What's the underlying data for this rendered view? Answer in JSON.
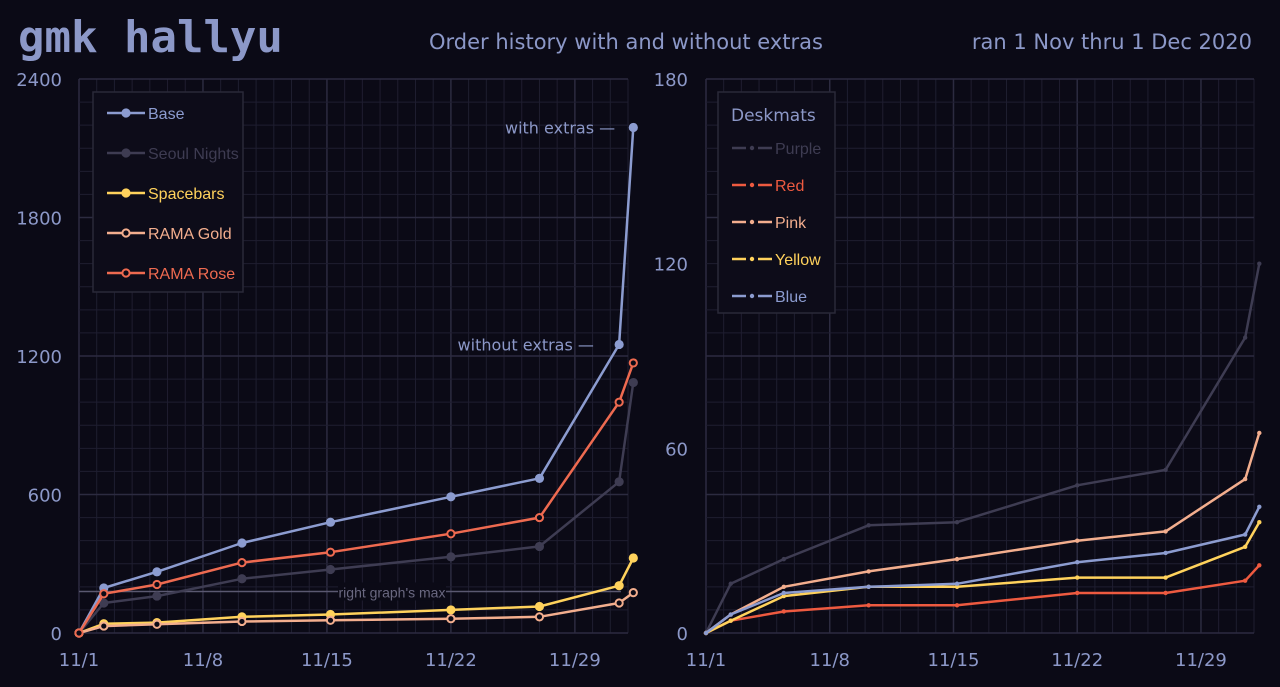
{
  "header": {
    "brand": "gmk hallyu",
    "subtitle": "Order history with and without extras",
    "date_range": "ran 1 Nov thru 1 Dec 2020"
  },
  "colors": {
    "background": "#0b0a16",
    "text": "#8c98c8",
    "grid": "#1f1e30",
    "grid_major": "#2c2b40",
    "base": "#8c9cd0",
    "seoul_nights": "#3e3c52",
    "spacebars": "#ffd25c",
    "rama_gold": "#f3ae8e",
    "rama_rose": "#ee6a50",
    "purple": "#3e3c52",
    "red": "#ee5a40",
    "pink": "#f3ae8e",
    "yellow": "#ffd25c",
    "blue": "#8c9cd0"
  },
  "chart_data": [
    {
      "type": "line",
      "panel": "left",
      "title": "Order history with and without extras",
      "x_unit": "day of November 2020 (32 = 2 Dec)",
      "xticks": [
        1,
        8,
        15,
        22,
        29
      ],
      "xtick_labels": [
        "11/1",
        "11/8",
        "11/15",
        "11/22",
        "11/29"
      ],
      "xlim": [
        1,
        32
      ],
      "ylim": [
        0,
        2400
      ],
      "yticks": [
        0,
        600,
        1200,
        1800,
        2400
      ],
      "ytick_labels": [
        "0",
        "600",
        "1200",
        "1800",
        "2400"
      ],
      "legend_position": "top-left",
      "series": [
        {
          "name": "Base",
          "color": "base",
          "marker": "filled",
          "points": [
            [
              1,
              0
            ],
            [
              2.4,
              195
            ],
            [
              5.4,
              265
            ],
            [
              10.2,
              390
            ],
            [
              15.2,
              480
            ],
            [
              22,
              590
            ],
            [
              27,
              670
            ],
            [
              31.5,
              1250
            ],
            [
              32.3,
              2190
            ]
          ]
        },
        {
          "name": "Seoul Nights",
          "color": "seoul_nights",
          "marker": "filled",
          "points": [
            [
              1,
              0
            ],
            [
              2.4,
              130
            ],
            [
              5.4,
              160
            ],
            [
              10.2,
              235
            ],
            [
              15.2,
              275
            ],
            [
              22,
              330
            ],
            [
              27,
              375
            ],
            [
              31.5,
              655
            ],
            [
              32.3,
              1085
            ]
          ]
        },
        {
          "name": "Spacebars",
          "color": "spacebars",
          "marker": "filled",
          "points": [
            [
              1,
              0
            ],
            [
              2.4,
              40
            ],
            [
              5.4,
              45
            ],
            [
              10.2,
              70
            ],
            [
              15.2,
              80
            ],
            [
              22,
              100
            ],
            [
              27,
              115
            ],
            [
              31.5,
              205
            ],
            [
              32.3,
              325
            ]
          ]
        },
        {
          "name": "RAMA Gold",
          "color": "rama_gold",
          "marker": "hollow",
          "points": [
            [
              1,
              0
            ],
            [
              2.4,
              30
            ],
            [
              5.4,
              38
            ],
            [
              10.2,
              50
            ],
            [
              15.2,
              55
            ],
            [
              22,
              62
            ],
            [
              27,
              70
            ],
            [
              31.5,
              130
            ],
            [
              32.3,
              175
            ]
          ]
        },
        {
          "name": "RAMA Rose",
          "color": "rama_rose",
          "marker": "hollow",
          "points": [
            [
              1,
              0
            ],
            [
              2.4,
              170
            ],
            [
              5.4,
              210
            ],
            [
              10.2,
              305
            ],
            [
              15.2,
              350
            ],
            [
              22,
              430
            ],
            [
              27,
              500
            ],
            [
              31.5,
              1000
            ],
            [
              32.3,
              1170
            ]
          ]
        }
      ],
      "annotations": [
        {
          "text": "with extras —",
          "x": 31.5,
          "y": 2190
        },
        {
          "text": "without extras —",
          "x": 30.3,
          "y": 1250
        },
        {
          "text": "right graph's max",
          "y": 180
        }
      ]
    },
    {
      "type": "line",
      "panel": "right",
      "legend_title": "Deskmats",
      "x_unit": "day of November 2020 (32 = 2 Dec)",
      "xticks": [
        1,
        8,
        15,
        22,
        29
      ],
      "xtick_labels": [
        "11/1",
        "11/8",
        "11/15",
        "11/22",
        "11/29"
      ],
      "xlim": [
        1,
        32
      ],
      "ylim": [
        0,
        180
      ],
      "yticks": [
        0,
        60,
        120,
        180
      ],
      "ytick_labels": [
        "0",
        "60",
        "120",
        "180"
      ],
      "legend_position": "top-left",
      "series": [
        {
          "name": "Purple",
          "color": "purple",
          "points": [
            [
              1,
              0
            ],
            [
              2.4,
              16
            ],
            [
              5.4,
              24
            ],
            [
              10.2,
              35
            ],
            [
              15.2,
              36
            ],
            [
              22,
              48
            ],
            [
              27,
              53
            ],
            [
              31.5,
              96
            ],
            [
              32.3,
              120
            ]
          ]
        },
        {
          "name": "Red",
          "color": "red",
          "points": [
            [
              1,
              0
            ],
            [
              2.4,
              4
            ],
            [
              5.4,
              7
            ],
            [
              10.2,
              9
            ],
            [
              15.2,
              9
            ],
            [
              22,
              13
            ],
            [
              27,
              13
            ],
            [
              31.5,
              17
            ],
            [
              32.3,
              22
            ]
          ]
        },
        {
          "name": "Pink",
          "color": "pink",
          "points": [
            [
              1,
              0
            ],
            [
              2.4,
              6
            ],
            [
              5.4,
              15
            ],
            [
              10.2,
              20
            ],
            [
              15.2,
              24
            ],
            [
              22,
              30
            ],
            [
              27,
              33
            ],
            [
              31.5,
              50
            ],
            [
              32.3,
              65
            ]
          ]
        },
        {
          "name": "Yellow",
          "color": "yellow",
          "points": [
            [
              1,
              0
            ],
            [
              2.4,
              4
            ],
            [
              5.4,
              12
            ],
            [
              10.2,
              15
            ],
            [
              15.2,
              15
            ],
            [
              22,
              18
            ],
            [
              27,
              18
            ],
            [
              31.5,
              28
            ],
            [
              32.3,
              36
            ]
          ]
        },
        {
          "name": "Blue",
          "color": "blue",
          "points": [
            [
              1,
              0
            ],
            [
              2.4,
              6
            ],
            [
              5.4,
              13
            ],
            [
              10.2,
              15
            ],
            [
              15.2,
              16
            ],
            [
              22,
              23
            ],
            [
              27,
              26
            ],
            [
              31.5,
              32
            ],
            [
              32.3,
              41
            ]
          ]
        }
      ]
    }
  ]
}
